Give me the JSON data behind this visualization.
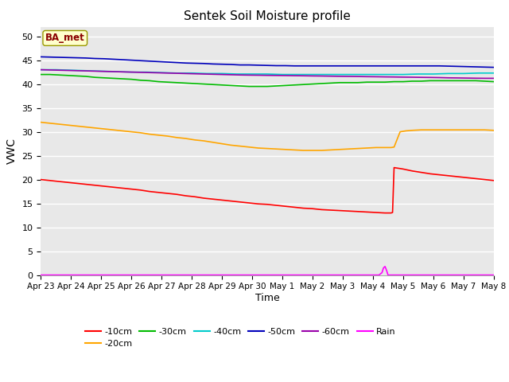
{
  "title": "Sentek Soil Moisture profile",
  "xlabel": "Time",
  "ylabel": "VWC",
  "ylim": [
    0,
    52
  ],
  "yticks": [
    0,
    5,
    10,
    15,
    20,
    25,
    30,
    35,
    40,
    45,
    50
  ],
  "xlim": [
    0,
    15
  ],
  "bg_color": "#e8e8e8",
  "label_box_text": "BA_met",
  "label_box_facecolor": "#ffffcc",
  "label_box_edgecolor": "#999900",
  "label_box_textcolor": "#8b0000",
  "x_tick_labels": [
    "Apr 23",
    "Apr 24",
    "Apr 25",
    "Apr 26",
    "Apr 27",
    "Apr 28",
    "Apr 29",
    "Apr 30",
    "May 1",
    "May 2",
    "May 3",
    "May 4",
    "May 5",
    "May 6",
    "May 7",
    "May 8"
  ],
  "series": {
    "-10cm": {
      "color": "#ff0000",
      "data_x": [
        0,
        0.3,
        0.6,
        0.9,
        1.2,
        1.5,
        1.8,
        2.1,
        2.4,
        2.7,
        3.0,
        3.3,
        3.6,
        3.9,
        4.2,
        4.5,
        4.8,
        5.1,
        5.4,
        5.7,
        6.0,
        6.3,
        6.6,
        6.9,
        7.2,
        7.5,
        7.8,
        8.1,
        8.4,
        8.7,
        9.0,
        9.3,
        9.6,
        9.9,
        10.2,
        10.5,
        10.8,
        11.1,
        11.4,
        11.5,
        11.6,
        11.65,
        11.7,
        12.0,
        12.3,
        12.6,
        12.9,
        13.2,
        13.5,
        13.8,
        14.1,
        14.4,
        14.7,
        15.0
      ],
      "data_y": [
        20.0,
        19.8,
        19.6,
        19.4,
        19.2,
        19.0,
        18.8,
        18.6,
        18.4,
        18.2,
        18.0,
        17.8,
        17.5,
        17.3,
        17.1,
        16.9,
        16.6,
        16.4,
        16.1,
        15.9,
        15.7,
        15.5,
        15.3,
        15.1,
        14.9,
        14.8,
        14.6,
        14.4,
        14.2,
        14.0,
        13.9,
        13.7,
        13.6,
        13.5,
        13.4,
        13.3,
        13.2,
        13.1,
        13.0,
        13.0,
        13.0,
        13.1,
        22.5,
        22.2,
        21.8,
        21.5,
        21.2,
        21.0,
        20.8,
        20.6,
        20.4,
        20.2,
        20.0,
        19.8
      ]
    },
    "-20cm": {
      "color": "#ffa500",
      "data_x": [
        0,
        0.3,
        0.6,
        0.9,
        1.2,
        1.5,
        1.8,
        2.1,
        2.4,
        2.7,
        3.0,
        3.3,
        3.6,
        3.9,
        4.2,
        4.5,
        4.8,
        5.1,
        5.4,
        5.7,
        6.0,
        6.3,
        6.6,
        6.9,
        7.2,
        7.5,
        7.8,
        8.1,
        8.4,
        8.7,
        9.0,
        9.3,
        9.6,
        9.9,
        10.2,
        10.5,
        10.8,
        11.1,
        11.35,
        11.5,
        11.6,
        11.7,
        11.9,
        12.1,
        12.3,
        12.6,
        12.9,
        13.2,
        13.5,
        13.8,
        14.1,
        14.4,
        14.7,
        15.0
      ],
      "data_y": [
        32.0,
        31.8,
        31.6,
        31.4,
        31.2,
        31.0,
        30.8,
        30.6,
        30.4,
        30.2,
        30.0,
        29.8,
        29.5,
        29.3,
        29.1,
        28.8,
        28.6,
        28.3,
        28.1,
        27.8,
        27.5,
        27.2,
        27.0,
        26.8,
        26.6,
        26.5,
        26.4,
        26.3,
        26.2,
        26.1,
        26.1,
        26.1,
        26.2,
        26.3,
        26.4,
        26.5,
        26.6,
        26.7,
        26.7,
        26.7,
        26.7,
        26.8,
        30.0,
        30.2,
        30.3,
        30.4,
        30.4,
        30.4,
        30.4,
        30.4,
        30.4,
        30.4,
        30.4,
        30.3
      ]
    },
    "-30cm": {
      "color": "#00bb00",
      "data_x": [
        0,
        0.3,
        0.6,
        0.9,
        1.2,
        1.5,
        1.8,
        2.1,
        2.4,
        2.7,
        3.0,
        3.3,
        3.6,
        3.9,
        4.2,
        4.5,
        4.8,
        5.1,
        5.4,
        5.7,
        6.0,
        6.3,
        6.6,
        6.9,
        7.2,
        7.5,
        7.8,
        8.1,
        8.4,
        8.7,
        9.0,
        9.3,
        9.6,
        9.9,
        10.2,
        10.5,
        10.8,
        11.1,
        11.4,
        11.7,
        12.0,
        12.3,
        12.6,
        12.9,
        13.2,
        13.5,
        13.8,
        14.1,
        14.4,
        14.7,
        15.0
      ],
      "data_y": [
        42.0,
        42.0,
        41.9,
        41.8,
        41.7,
        41.6,
        41.4,
        41.3,
        41.2,
        41.1,
        41.0,
        40.8,
        40.7,
        40.5,
        40.4,
        40.3,
        40.2,
        40.1,
        40.0,
        39.9,
        39.8,
        39.7,
        39.6,
        39.5,
        39.5,
        39.5,
        39.6,
        39.7,
        39.8,
        39.9,
        40.0,
        40.1,
        40.2,
        40.3,
        40.3,
        40.3,
        40.4,
        40.4,
        40.4,
        40.5,
        40.5,
        40.6,
        40.6,
        40.7,
        40.7,
        40.7,
        40.7,
        40.7,
        40.7,
        40.6,
        40.5
      ]
    },
    "-40cm": {
      "color": "#00cccc",
      "data_x": [
        0,
        0.5,
        1.0,
        1.5,
        2.0,
        2.5,
        3.0,
        3.5,
        4.0,
        4.5,
        5.0,
        5.5,
        6.0,
        6.5,
        7.0,
        7.5,
        8.0,
        8.5,
        9.0,
        9.5,
        10.0,
        10.5,
        11.0,
        11.5,
        12.0,
        12.5,
        13.0,
        13.5,
        14.0,
        14.5,
        15.0
      ],
      "data_y": [
        43.0,
        43.0,
        42.9,
        42.8,
        42.7,
        42.6,
        42.5,
        42.5,
        42.4,
        42.3,
        42.3,
        42.2,
        42.2,
        42.1,
        42.1,
        42.1,
        42.0,
        42.0,
        42.0,
        42.0,
        42.0,
        42.0,
        42.0,
        42.0,
        42.0,
        42.1,
        42.1,
        42.2,
        42.2,
        42.3,
        42.3
      ]
    },
    "-50cm": {
      "color": "#0000bb",
      "data_x": [
        0,
        0.3,
        0.6,
        0.9,
        1.2,
        1.5,
        1.8,
        2.1,
        2.4,
        2.7,
        3.0,
        3.3,
        3.6,
        3.9,
        4.2,
        4.5,
        4.8,
        5.1,
        5.4,
        5.7,
        6.0,
        6.3,
        6.6,
        6.9,
        7.2,
        7.5,
        7.8,
        8.1,
        8.4,
        8.7,
        9.0,
        9.3,
        9.6,
        9.9,
        10.2,
        10.5,
        10.8,
        11.1,
        11.4,
        11.7,
        12.0,
        12.3,
        12.6,
        12.9,
        13.2,
        13.5,
        13.8,
        14.1,
        14.4,
        14.7,
        15.0
      ],
      "data_y": [
        45.7,
        45.65,
        45.6,
        45.55,
        45.5,
        45.45,
        45.35,
        45.3,
        45.2,
        45.1,
        45.0,
        44.9,
        44.8,
        44.7,
        44.6,
        44.5,
        44.4,
        44.35,
        44.3,
        44.2,
        44.15,
        44.1,
        44.0,
        44.0,
        43.95,
        43.9,
        43.85,
        43.85,
        43.8,
        43.8,
        43.8,
        43.8,
        43.8,
        43.8,
        43.8,
        43.8,
        43.8,
        43.8,
        43.8,
        43.8,
        43.8,
        43.8,
        43.8,
        43.8,
        43.8,
        43.75,
        43.7,
        43.65,
        43.6,
        43.55,
        43.5
      ]
    },
    "-60cm": {
      "color": "#9900aa",
      "data_x": [
        0,
        0.3,
        0.6,
        0.9,
        1.2,
        1.5,
        1.8,
        2.1,
        2.4,
        2.7,
        3.0,
        3.3,
        3.6,
        3.9,
        4.2,
        4.5,
        4.8,
        5.1,
        5.4,
        5.7,
        6.0,
        6.3,
        6.6,
        6.9,
        7.2,
        7.5,
        7.8,
        8.1,
        8.4,
        8.7,
        9.0,
        9.3,
        9.6,
        9.9,
        10.2,
        10.5,
        10.8,
        11.1,
        11.4,
        11.7,
        12.0,
        12.3,
        12.6,
        12.9,
        13.2,
        13.5,
        13.8,
        14.1,
        14.4,
        14.7,
        15.0
      ],
      "data_y": [
        43.0,
        42.95,
        42.9,
        42.85,
        42.8,
        42.75,
        42.7,
        42.65,
        42.6,
        42.55,
        42.5,
        42.45,
        42.4,
        42.35,
        42.3,
        42.25,
        42.2,
        42.15,
        42.1,
        42.05,
        42.0,
        41.95,
        41.9,
        41.87,
        41.85,
        41.82,
        41.8,
        41.78,
        41.75,
        41.73,
        41.7,
        41.68,
        41.65,
        41.62,
        41.6,
        41.58,
        41.55,
        41.53,
        41.5,
        41.48,
        41.45,
        41.43,
        41.4,
        41.38,
        41.35,
        41.3,
        41.28,
        41.25,
        41.22,
        41.2,
        41.2
      ]
    },
    "Rain": {
      "color": "#ff00ff",
      "data_x": [
        0,
        11.2,
        11.3,
        11.35,
        11.4,
        11.45,
        11.5,
        15.0
      ],
      "data_y": [
        0,
        0,
        0.5,
        1.5,
        1.8,
        1.0,
        0,
        0
      ]
    }
  },
  "legend_row1": [
    "-10cm",
    "-20cm",
    "-30cm",
    "-40cm",
    "-50cm",
    "-60cm"
  ],
  "legend_row2": [
    "Rain"
  ]
}
